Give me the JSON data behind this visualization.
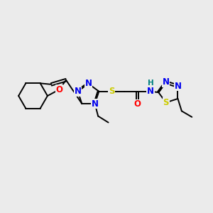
{
  "bg_color": "#ebebeb",
  "atom_colors": {
    "C": "#000000",
    "N": "#0000ee",
    "O": "#ff0000",
    "S": "#cccc00",
    "H": "#008080"
  },
  "bond_color": "#000000",
  "bond_width": 1.4,
  "fig_size": [
    3.0,
    3.0
  ],
  "dpi": 100,
  "xlim": [
    0,
    10
  ],
  "ylim": [
    0,
    10
  ],
  "font_size": 8.5,
  "font_size_h": 7.5
}
